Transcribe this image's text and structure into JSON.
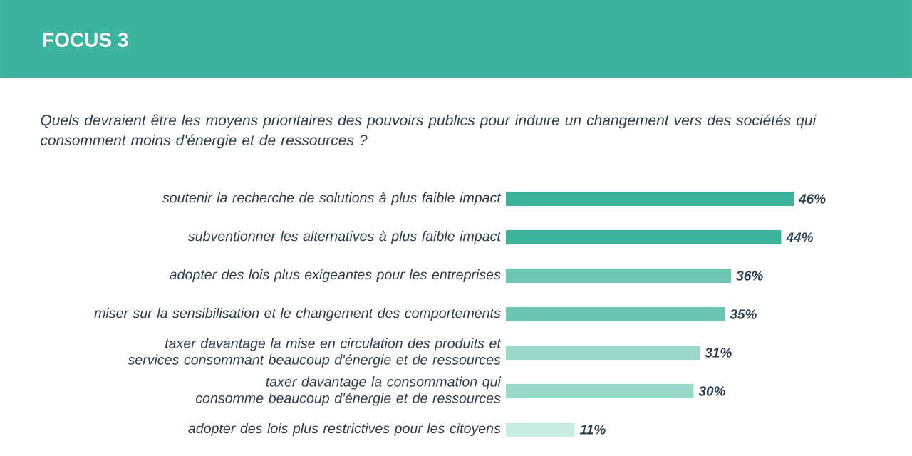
{
  "chart_data": {
    "type": "bar",
    "orientation": "horizontal",
    "title": "FOCUS 3",
    "subtitle": "Quels devraient être les moyens prioritaires des pouvoirs publics pour induire un changement vers des sociétés qui consomment moins d'énergie et de ressources ?",
    "categories": [
      "soutenir la recherche de solutions à plus faible impact",
      "subventionner les alternatives à plus faible impact",
      "adopter des lois plus exigeantes pour les entreprises",
      "miser sur la sensibilisation et le changement des comportements",
      "taxer davantage la mise en circulation des produits et services consommant beaucoup d'énergie et de ressources",
      "taxer davantage la consommation qui consomme beaucoup d'énergie et de ressources",
      "adopter des lois plus restrictives pour les citoyens"
    ],
    "values": [
      46,
      44,
      36,
      35,
      31,
      30,
      11
    ],
    "value_labels": [
      "46%",
      "44%",
      "36%",
      "35%",
      "31%",
      "30%",
      "11%"
    ],
    "colors": [
      "#3bb39b",
      "#3bb39b",
      "#6cc5b0",
      "#6cc5b0",
      "#9ad8c9",
      "#9ad8c9",
      "#c8ebe3"
    ]
  }
}
